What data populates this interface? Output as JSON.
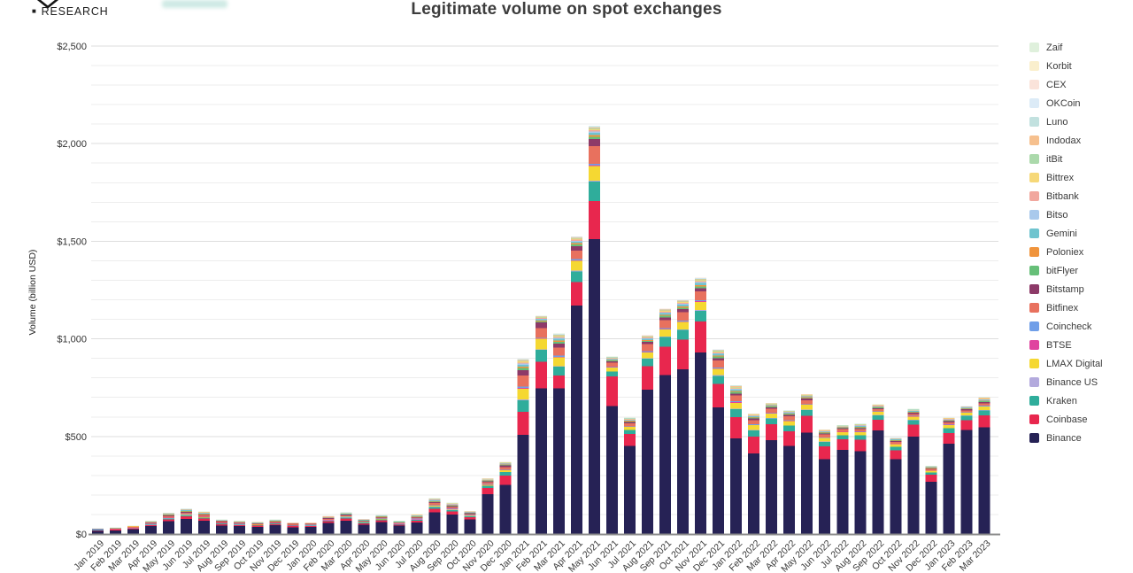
{
  "header": {
    "research_label": "RESEARCH"
  },
  "chart_data": {
    "type": "bar",
    "stacked": true,
    "title": "Legitimate volume on spot exchanges",
    "ylabel": "Volume (billion USD)",
    "xlabel": "",
    "unit": "billion USD",
    "ylim": [
      0,
      2500
    ],
    "y_tick_labels": [
      "$0",
      "$500",
      "$1,000",
      "$1,500",
      "$2,000",
      "$2,500"
    ],
    "y_tick_step": 500,
    "grid": "horizontal gridlines, minor every 100, major every 500",
    "legend_position": "right",
    "months": [
      "Jan 2019",
      "Feb 2019",
      "Mar 2019",
      "Apr 2019",
      "May 2019",
      "Jun 2019",
      "Jul 2019",
      "Aug 2019",
      "Sep 2019",
      "Oct 2019",
      "Nov 2019",
      "Dec 2019",
      "Jan 2020",
      "Feb 2020",
      "Mar 2020",
      "Apr 2020",
      "May 2020",
      "Jun 2020",
      "Jul 2020",
      "Aug 2020",
      "Sep 2020",
      "Oct 2020",
      "Nov 2020",
      "Dec 2020",
      "Jan 2021",
      "Feb 2021",
      "Mar 2021",
      "Apr 2021",
      "May 2021",
      "Jun 2021",
      "Jul 2021",
      "Aug 2021",
      "Sep 2021",
      "Oct 2021",
      "Nov 2021",
      "Dec 2021",
      "Jan 2022",
      "Feb 2022",
      "Mar 2022",
      "Apr 2022",
      "May 2022",
      "Jun 2022",
      "Jul 2022",
      "Aug 2022",
      "Sep 2022",
      "Oct 2022",
      "Nov 2022",
      "Dec 2022",
      "Jan 2023",
      "Feb 2023",
      "Mar 2023"
    ],
    "legend_order_top_to_bottom": [
      "Zaif",
      "Korbit",
      "CEX",
      "OKCoin",
      "Luno",
      "Indodax",
      "itBit",
      "Bittrex",
      "Bitbank",
      "Bitso",
      "Gemini",
      "Poloniex",
      "bitFlyer",
      "Bitstamp",
      "Bitfinex",
      "Coincheck",
      "BTSE",
      "LMAX Digital",
      "Binance US",
      "Kraken",
      "Coinbase",
      "Binance"
    ],
    "stack_order_bottom_to_top": [
      "Binance",
      "Coinbase",
      "Kraken",
      "Binance US",
      "LMAX Digital",
      "BTSE",
      "Coincheck",
      "Bitfinex",
      "Bitstamp",
      "bitFlyer",
      "Poloniex",
      "Gemini",
      "Bitso",
      "Bitbank",
      "Bittrex",
      "itBit",
      "Indodax",
      "Luno",
      "OKCoin",
      "CEX",
      "Korbit",
      "Zaif"
    ],
    "colors": {
      "Zaif": "#dff0dc",
      "Korbit": "#faefcd",
      "CEX": "#fae3da",
      "OKCoin": "#dcebf7",
      "Luno": "#c2e1df",
      "Indodax": "#f6c08e",
      "itBit": "#abd9ab",
      "Bittrex": "#f6d878",
      "Bitbank": "#f1a79e",
      "Bitso": "#a9c9ec",
      "Gemini": "#6fc4cf",
      "Poloniex": "#f0943c",
      "bitFlyer": "#66bf78",
      "Bitstamp": "#8d3a68",
      "Bitfinex": "#e8715e",
      "Coincheck": "#6f9ee8",
      "BTSE": "#e0439f",
      "LMAX Digital": "#f5d832",
      "Binance US": "#b3aadd",
      "Kraken": "#2fad9b",
      "Coinbase": "#e8274e",
      "Binance": "#262255"
    },
    "series_major": {
      "Binance": [
        16,
        19,
        25,
        40,
        65,
        78,
        68,
        44,
        40,
        37,
        45,
        35,
        36,
        57,
        68,
        48,
        61,
        42,
        59,
        112,
        100,
        74,
        205,
        251,
        508,
        747,
        747,
        1171,
        1511,
        656,
        452,
        739,
        815,
        845,
        929,
        649,
        490,
        414,
        482,
        452,
        520,
        384,
        430,
        425,
        531,
        384,
        500,
        268,
        463,
        534,
        546
      ],
      "Coinbase": [
        3,
        3,
        4,
        6,
        10,
        12,
        11,
        7,
        6,
        6,
        6,
        5,
        5,
        8,
        11,
        7,
        9,
        6,
        9,
        18,
        15,
        12,
        30,
        48,
        118,
        136,
        65,
        120,
        195,
        151,
        60,
        120,
        145,
        150,
        160,
        120,
        110,
        85,
        80,
        75,
        85,
        65,
        55,
        58,
        55,
        45,
        60,
        35,
        55,
        50,
        62
      ],
      "Kraken": [
        1.5,
        1.5,
        2,
        3,
        5,
        6,
        5,
        3.5,
        3,
        3,
        3.5,
        3,
        3,
        4,
        6,
        4,
        5,
        3.5,
        5,
        9,
        8,
        6,
        12,
        18,
        60,
        60,
        45,
        55,
        100,
        25,
        20,
        40,
        50,
        50,
        55,
        42,
        40,
        32,
        30,
        28,
        30,
        24,
        20,
        22,
        22,
        18,
        24,
        12,
        24,
        22,
        26
      ],
      "LMAX Digital": [
        0.5,
        0.5,
        0.5,
        1,
        1.5,
        2,
        2,
        1,
        1,
        1,
        1,
        1,
        1,
        1.5,
        2,
        1.5,
        2,
        1.5,
        2,
        4,
        3.5,
        2.5,
        5,
        8,
        55,
        55,
        45,
        50,
        75,
        20,
        15,
        30,
        35,
        38,
        42,
        32,
        30,
        25,
        24,
        23,
        25,
        18,
        16,
        16,
        16,
        13,
        16,
        9,
        16,
        14,
        17
      ],
      "Bitfinex": [
        2,
        2,
        2.5,
        4,
        7,
        8,
        7,
        4.5,
        4,
        4,
        4.5,
        3.5,
        3.5,
        5,
        6,
        4,
        5,
        3.5,
        5.5,
        10,
        8,
        6,
        10,
        14,
        58,
        50,
        40,
        45,
        90,
        20,
        15,
        35,
        40,
        42,
        45,
        35,
        30,
        22,
        20,
        20,
        20,
        14,
        12,
        12,
        12,
        9,
        11,
        6,
        10,
        10,
        12
      ],
      "Bitstamp": [
        1,
        1,
        1,
        2,
        3,
        4,
        3.5,
        2.5,
        2,
        2,
        2,
        2,
        2,
        2.5,
        3,
        2,
        2.5,
        2,
        2.5,
        5,
        4,
        3,
        5,
        7,
        28,
        28,
        22,
        22,
        38,
        8,
        6,
        12,
        14,
        15,
        16,
        12,
        10,
        8,
        8,
        7,
        8,
        6,
        5,
        5,
        5,
        4,
        5,
        3,
        5,
        5,
        6
      ]
    },
    "others_total": [
      5,
      6,
      7,
      11,
      17.5,
      20,
      18.5,
      11.5,
      11,
      9,
      12,
      9.5,
      8.5,
      14,
      16,
      10.5,
      12.5,
      8.5,
      18,
      25,
      21.5,
      13.5,
      18,
      24,
      71,
      42,
      63,
      62,
      82,
      29,
      28,
      43,
      56,
      61,
      67,
      57,
      52,
      32,
      27,
      29,
      29,
      24,
      20,
      28,
      23,
      20,
      25,
      16,
      23,
      21,
      33
    ],
    "others_weights": {
      "Binance US": 0.05,
      "BTSE": 0.05,
      "Coincheck": 0.09,
      "bitFlyer": 0.14,
      "Poloniex": 0.1,
      "Gemini": 0.14,
      "Bitso": 0.07,
      "Bitbank": 0.08,
      "Bittrex": 0.08,
      "itBit": 0.05,
      "Indodax": 0.05,
      "Luno": 0.04,
      "OKCoin": 0.03,
      "CEX": 0.02,
      "Korbit": 0.005,
      "Zaif": 0.005
    },
    "totals": [
      29,
      33,
      42,
      67,
      109,
      130,
      115,
      74,
      67,
      62,
      74,
      59,
      59,
      92,
      112,
      77,
      97,
      67,
      101,
      183,
      160,
      117,
      285,
      370,
      898,
      1118,
      1027,
      1525,
      2091,
      909,
      596,
      1019,
      1155,
      1201,
      1314,
      947,
      762,
      618,
      671,
      634,
      717,
      535,
      558,
      566,
      664,
      493,
      641,
      349,
      596,
      656,
      702
    ]
  }
}
